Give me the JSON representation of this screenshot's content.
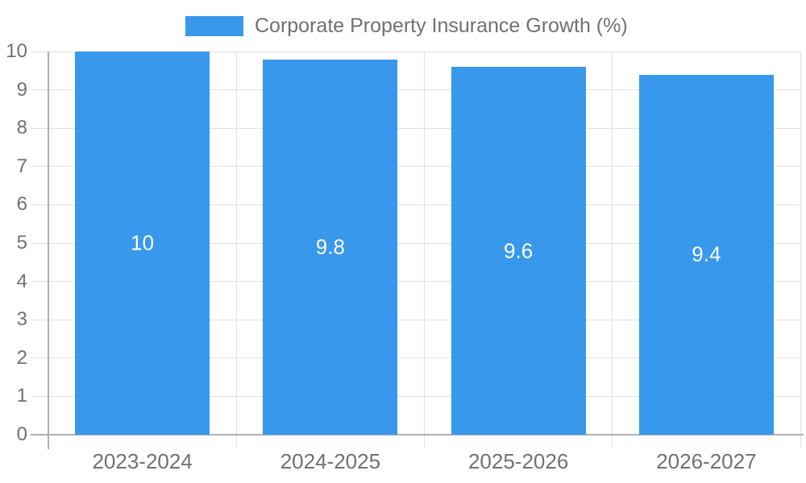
{
  "chart_data": {
    "type": "bar",
    "legend": {
      "position": "top",
      "label": "Corporate Property Insurance Growth (%)"
    },
    "categories": [
      "2023-2024",
      "2024-2025",
      "2025-2026",
      "2026-2027"
    ],
    "series": [
      {
        "name": "Corporate Property Insurance Growth (%)",
        "values": [
          10,
          9.8,
          9.6,
          9.4
        ],
        "data_labels": [
          "10",
          "9.8",
          "9.6",
          "9.4"
        ]
      }
    ],
    "xlabel": "",
    "ylabel": "",
    "ylim": [
      0,
      10
    ],
    "ytick_step": 1,
    "yticks": [
      "0",
      "1",
      "2",
      "3",
      "4",
      "5",
      "6",
      "7",
      "8",
      "9",
      "10"
    ],
    "grid": true,
    "colors": {
      "bar": "#3898ec",
      "bar_label_text": "#ffffff",
      "axis_text": "#717171",
      "grid_line": "#e2e2e2",
      "axis_line": "#b0b0b0",
      "background": "#ffffff"
    }
  }
}
